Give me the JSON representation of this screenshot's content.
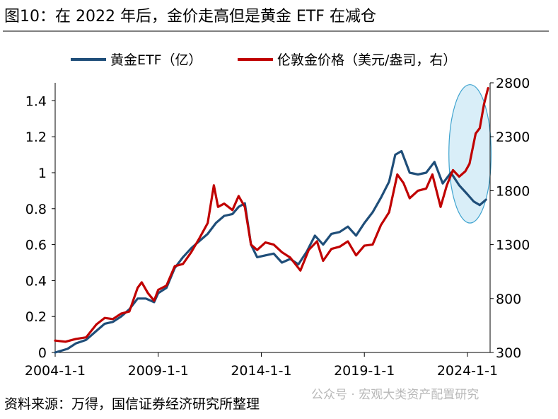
{
  "figure": {
    "title": "图10：在 2022 年后，金价走高但是黄金 ETF 在减仓",
    "source": "资料来源：万得，国信证券经济研究所整理",
    "watermark": "公众号 · 宏观大类资产配置研究"
  },
  "colors": {
    "etf": "#1f4e79",
    "gold": "#c00000",
    "highlight_fill": "#d9eef8",
    "highlight_stroke": "#3ea3cf"
  },
  "chart_data": {
    "type": "line",
    "legend_position": "top",
    "grid": false,
    "xlim": [
      2004.0,
      2025.1
    ],
    "x_ticks": [
      2004.0,
      2009.0,
      2014.0,
      2019.0,
      2024.0
    ],
    "x_tick_labels": [
      "2004-1-1",
      "2009-1-1",
      "2014-1-1",
      "2019-1-1",
      "2024-1-1"
    ],
    "y_left": {
      "ylim": [
        0,
        1.5
      ],
      "ticks": [
        0,
        0.2,
        0.4,
        0.6,
        0.8,
        1,
        1.2,
        1.4
      ],
      "tick_labels": [
        "0",
        "0.2",
        "0.4",
        "0.6",
        "0.8",
        "1",
        "1.2",
        "1.4"
      ]
    },
    "y_right": {
      "ylim": [
        300,
        2800
      ],
      "ticks": [
        300,
        800,
        1300,
        1800,
        2300,
        2800
      ],
      "tick_labels": [
        "300",
        "800",
        "1300",
        "1800",
        "2300",
        "2800"
      ]
    },
    "highlight_ellipse": {
      "x_range": [
        2023.1,
        2025.15
      ],
      "y_left_range": [
        0.72,
        1.49
      ]
    },
    "series": [
      {
        "name": "黄金ETF（亿）",
        "axis": "left",
        "x": [
          2004.0,
          2004.3,
          2004.6,
          2005.0,
          2005.5,
          2006.0,
          2006.4,
          2006.8,
          2007.2,
          2007.6,
          2008.0,
          2008.4,
          2008.8,
          2009.0,
          2009.4,
          2009.8,
          2010.2,
          2010.6,
          2011.0,
          2011.4,
          2011.8,
          2012.2,
          2012.6,
          2012.9,
          2013.2,
          2013.5,
          2013.8,
          2014.2,
          2014.6,
          2015.0,
          2015.4,
          2015.8,
          2016.2,
          2016.6,
          2017.0,
          2017.4,
          2017.8,
          2018.2,
          2018.6,
          2019.0,
          2019.4,
          2019.8,
          2020.2,
          2020.5,
          2020.8,
          2021.2,
          2021.6,
          2022.0,
          2022.4,
          2022.8,
          2023.2,
          2023.6,
          2024.0,
          2024.3,
          2024.6,
          2024.9
        ],
        "y": [
          0.0,
          0.01,
          0.02,
          0.05,
          0.07,
          0.12,
          0.16,
          0.17,
          0.2,
          0.24,
          0.3,
          0.3,
          0.28,
          0.33,
          0.36,
          0.47,
          0.53,
          0.58,
          0.62,
          0.66,
          0.72,
          0.76,
          0.77,
          0.81,
          0.83,
          0.6,
          0.53,
          0.54,
          0.55,
          0.5,
          0.52,
          0.49,
          0.56,
          0.65,
          0.6,
          0.66,
          0.67,
          0.7,
          0.65,
          0.72,
          0.78,
          0.86,
          0.95,
          1.1,
          1.12,
          1.0,
          0.99,
          1.0,
          1.06,
          0.94,
          1.0,
          0.93,
          0.88,
          0.84,
          0.82,
          0.85
        ]
      },
      {
        "name": "伦敦金价格（美元/盎司，右）",
        "axis": "right",
        "x": [
          2004.0,
          2004.5,
          2005.0,
          2005.5,
          2006.0,
          2006.4,
          2006.8,
          2007.2,
          2007.6,
          2008.0,
          2008.2,
          2008.5,
          2008.8,
          2009.0,
          2009.4,
          2009.8,
          2010.2,
          2010.6,
          2011.0,
          2011.4,
          2011.7,
          2011.9,
          2012.2,
          2012.6,
          2012.9,
          2013.2,
          2013.5,
          2013.8,
          2014.2,
          2014.6,
          2015.0,
          2015.4,
          2015.9,
          2016.3,
          2016.7,
          2017.0,
          2017.4,
          2017.8,
          2018.2,
          2018.6,
          2019.0,
          2019.4,
          2019.8,
          2020.2,
          2020.6,
          2020.9,
          2021.2,
          2021.6,
          2022.0,
          2022.3,
          2022.7,
          2023.0,
          2023.3,
          2023.6,
          2023.9,
          2024.1,
          2024.4,
          2024.6,
          2024.8,
          2025.0
        ],
        "y": [
          410,
          400,
          425,
          440,
          560,
          620,
          610,
          660,
          680,
          900,
          950,
          850,
          780,
          880,
          920,
          1100,
          1120,
          1230,
          1360,
          1500,
          1850,
          1650,
          1680,
          1620,
          1750,
          1650,
          1300,
          1250,
          1320,
          1300,
          1230,
          1180,
          1060,
          1250,
          1330,
          1150,
          1260,
          1280,
          1330,
          1200,
          1290,
          1300,
          1480,
          1600,
          1950,
          1870,
          1730,
          1800,
          1820,
          1950,
          1650,
          1850,
          1990,
          1930,
          1980,
          2050,
          2330,
          2380,
          2600,
          2750
        ]
      }
    ]
  }
}
